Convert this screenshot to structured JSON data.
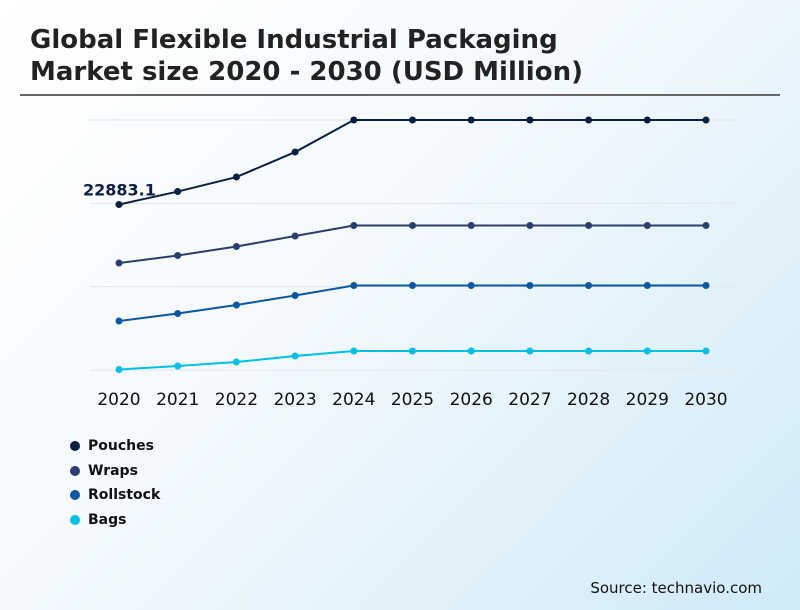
{
  "chart_data": {
    "type": "line",
    "title": "Global Flexible Industrial Packaging Market size 2020 - 2030 (USD Million)",
    "xlabel": "",
    "ylabel": "",
    "x": [
      "2020",
      "2021",
      "2022",
      "2023",
      "2024",
      "2025",
      "2026",
      "2027",
      "2028",
      "2029",
      "2030"
    ],
    "ylim": [
      0,
      34575
    ],
    "grid": true,
    "y_tick_labels_shown": false,
    "legend_position": "bottom-left",
    "series": [
      {
        "name": "Pouches",
        "color": "#0b1f45",
        "values": [
          22883.1,
          24681,
          26686,
          30144,
          34575,
          34575,
          34575,
          34575,
          34575,
          34575,
          34575
        ]
      },
      {
        "name": "Wraps",
        "color": "#2c3e70",
        "values": [
          14798,
          15835,
          17080,
          18532,
          19984,
          19984,
          19984,
          19984,
          19984,
          19984,
          19984
        ]
      },
      {
        "name": "Rollstock",
        "color": "#0a57a4",
        "values": [
          6777,
          7814,
          8990,
          10303,
          11686,
          11686,
          11686,
          11686,
          11686,
          11686,
          11686
        ]
      },
      {
        "name": "Bags",
        "color": "#00c0e4",
        "values": [
          69,
          553,
          1107,
          1936,
          2628,
          2628,
          2628,
          2628,
          2628,
          2628,
          2628
        ]
      }
    ],
    "annotations": [
      {
        "series": "Pouches",
        "x": "2020",
        "text": "22883.1"
      }
    ]
  },
  "source": "Source: technavio.com",
  "title_line1": "Global Flexible Industrial Packaging",
  "title_line2": "Market size 2020 - 2030 (USD Million)"
}
